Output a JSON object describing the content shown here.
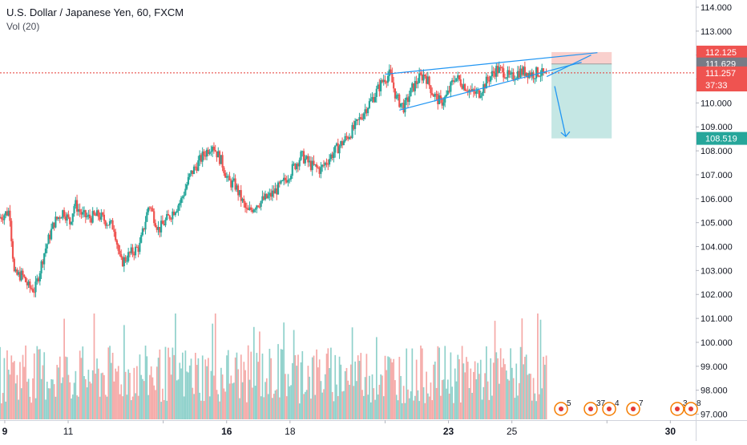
{
  "header": {
    "title": "U.S. Dollar / Japanese Yen, 60, FXCM",
    "volume_label": "Vol (20)"
  },
  "colors": {
    "up": "#26a69a",
    "down": "#ef5350",
    "vol_up": "#8fd1cb",
    "vol_down": "#f5a9a7",
    "wedge": "#2196f3",
    "target_zone": "#b2dfdb",
    "stop_zone": "#f8c8c4",
    "price_line": "#e53935",
    "axis_text": "#131722"
  },
  "chart_data": {
    "type": "candlestick",
    "instrument": "U.S. Dollar / Japanese Yen",
    "interval": "60",
    "source": "FXCM",
    "y_ticks": [
      97.0,
      98.0,
      99.0,
      100.0,
      101.0,
      102.0,
      103.0,
      104.0,
      105.0,
      106.0,
      107.0,
      108.0,
      109.0,
      110.0,
      111.0,
      112.0,
      113.0,
      114.0
    ],
    "y_tick_labels": [
      "97.000",
      "98.000",
      "99.000",
      "100.000",
      "101.000",
      "102.000",
      "103.000",
      "104.000",
      "105.000",
      "106.000",
      "107.000",
      "108.000",
      "109.000",
      "110.000",
      "111.000",
      "112.000",
      "113.000",
      "114.000"
    ],
    "ylim": [
      96.75,
      114.3
    ],
    "x_ticks": [
      9,
      11,
      14,
      16,
      18,
      21,
      23,
      25,
      28,
      30
    ],
    "x_tick_labels": [
      "9",
      "11",
      "",
      "16",
      "18",
      "",
      "23",
      "25",
      "",
      "30"
    ],
    "xlim": [
      8.85,
      30.8
    ],
    "price_path": [
      [
        8.85,
        105.2
      ],
      [
        9.2,
        105.5
      ],
      [
        9.25,
        104.5
      ],
      [
        9.35,
        102.8
      ],
      [
        9.6,
        102.8
      ],
      [
        9.8,
        102.3
      ],
      [
        10.0,
        102.2
      ],
      [
        10.3,
        103.8
      ],
      [
        10.6,
        105.0
      ],
      [
        10.9,
        105.5
      ],
      [
        11.1,
        105.0
      ],
      [
        11.25,
        105.8
      ],
      [
        11.5,
        105.3
      ],
      [
        11.7,
        105.2
      ],
      [
        12.0,
        105.3
      ],
      [
        12.3,
        105.0
      ],
      [
        12.5,
        104.8
      ],
      [
        12.7,
        103.3
      ],
      [
        13.0,
        103.7
      ],
      [
        13.3,
        104.0
      ],
      [
        13.6,
        105.8
      ],
      [
        13.9,
        104.7
      ],
      [
        14.2,
        105.2
      ],
      [
        14.6,
        105.9
      ],
      [
        14.9,
        107.0
      ],
      [
        15.3,
        107.8
      ],
      [
        15.6,
        108.3
      ],
      [
        15.7,
        108.0
      ],
      [
        15.9,
        107.5
      ],
      [
        16.1,
        106.7
      ],
      [
        16.3,
        106.6
      ],
      [
        16.7,
        105.4
      ],
      [
        17.0,
        105.8
      ],
      [
        17.4,
        106.1
      ],
      [
        17.8,
        106.6
      ],
      [
        18.1,
        107.2
      ],
      [
        18.4,
        107.8
      ],
      [
        18.7,
        107.4
      ],
      [
        19.0,
        107.2
      ],
      [
        19.4,
        107.9
      ],
      [
        19.8,
        108.5
      ],
      [
        20.1,
        109.0
      ],
      [
        20.4,
        109.7
      ],
      [
        20.7,
        110.3
      ],
      [
        21.0,
        111.0
      ],
      [
        21.2,
        111.2
      ],
      [
        21.4,
        110.2
      ],
      [
        21.65,
        109.8
      ],
      [
        21.9,
        110.6
      ],
      [
        22.1,
        111.0
      ],
      [
        22.3,
        111.2
      ],
      [
        22.55,
        110.4
      ],
      [
        22.8,
        110.0
      ],
      [
        23.0,
        110.3
      ],
      [
        23.25,
        111.1
      ],
      [
        23.5,
        110.8
      ],
      [
        23.8,
        110.4
      ],
      [
        24.0,
        110.4
      ],
      [
        24.3,
        111.0
      ],
      [
        24.55,
        111.4
      ],
      [
        24.8,
        111.3
      ],
      [
        25.0,
        111.0
      ],
      [
        25.25,
        111.3
      ],
      [
        25.5,
        111.3
      ],
      [
        25.7,
        111.2
      ],
      [
        25.9,
        111.3
      ],
      [
        26.1,
        111.1
      ]
    ],
    "volume_ylim": [
      0,
      1
    ],
    "current_price": 111.257,
    "price_labels": [
      {
        "value": 112.125,
        "text": "112.125",
        "color": "#ef5350"
      },
      {
        "value": 111.629,
        "text": "111.629",
        "color": "#787b86"
      },
      {
        "value": 111.257,
        "text": "111.257",
        "color": "#ef5350"
      },
      {
        "value": 110.75,
        "text": "37:33",
        "color": "#ef5350"
      },
      {
        "value": 108.519,
        "text": "108.519",
        "color": "#26a69a"
      }
    ],
    "annotations": {
      "rising_wedge": {
        "upper": [
          [
            21.0,
            111.2
          ],
          [
            27.7,
            112.1
          ]
        ],
        "lower": [
          [
            21.45,
            109.7
          ],
          [
            27.2,
            111.7
          ]
        ],
        "apex_extension": [
          [
            26.1,
            111.1
          ],
          [
            27.5,
            112.0
          ]
        ]
      },
      "short_position": {
        "x_start": 26.25,
        "x_end": 28.15,
        "entry": 111.629,
        "stop": 112.125,
        "target": 108.519
      },
      "arrow": [
        [
          26.35,
          110.7
        ],
        [
          26.7,
          108.6
        ]
      ],
      "horizontal_price_line": 111.257
    },
    "event_markers": [
      "5",
      "37",
      "4",
      "7",
      "3",
      "8"
    ]
  }
}
